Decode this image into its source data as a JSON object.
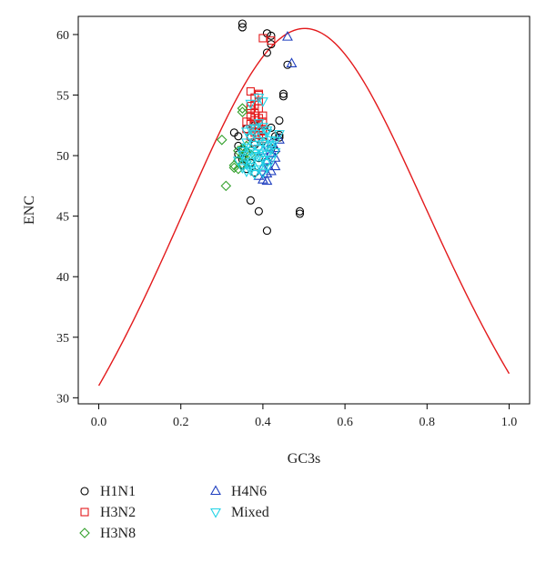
{
  "chart_data": {
    "type": "scatter",
    "xlabel": "GC3s",
    "ylabel": "ENC",
    "xlim": [
      -0.05,
      1.05
    ],
    "ylim": [
      29.5,
      61.5
    ],
    "x_ticks": [
      0.0,
      0.2,
      0.4,
      0.6,
      0.8,
      1.0
    ],
    "x_tick_labels": [
      "0.0",
      "0.2",
      "0.4",
      "0.6",
      "0.8",
      "1.0"
    ],
    "y_ticks": [
      30,
      35,
      40,
      45,
      50,
      55,
      60
    ],
    "y_tick_labels": [
      "30",
      "35",
      "40",
      "45",
      "50",
      "55",
      "60"
    ],
    "grid": false,
    "legend_position": "bottom-left",
    "expected_curve": {
      "formula": "ENC = 2 + s + 29/(s^2 + (1-s)^2)",
      "color": "#e31a1c"
    },
    "series": [
      {
        "name": "H1N1",
        "marker": "circle",
        "color": "#000000",
        "points": [
          [
            0.35,
            60.9
          ],
          [
            0.35,
            60.6
          ],
          [
            0.41,
            60.1
          ],
          [
            0.42,
            59.9
          ],
          [
            0.42,
            59.2
          ],
          [
            0.41,
            58.5
          ],
          [
            0.46,
            57.5
          ],
          [
            0.45,
            55.1
          ],
          [
            0.45,
            54.9
          ],
          [
            0.44,
            52.9
          ],
          [
            0.44,
            51.7
          ],
          [
            0.43,
            51.6
          ],
          [
            0.33,
            51.9
          ],
          [
            0.34,
            51.6
          ],
          [
            0.36,
            52.2
          ],
          [
            0.37,
            51.5
          ],
          [
            0.34,
            50.8
          ],
          [
            0.35,
            50.5
          ],
          [
            0.34,
            50.1
          ],
          [
            0.36,
            50.3
          ],
          [
            0.38,
            50.9
          ],
          [
            0.4,
            51.2
          ],
          [
            0.42,
            50.6
          ],
          [
            0.43,
            50.4
          ],
          [
            0.35,
            49.7
          ],
          [
            0.37,
            49.4
          ],
          [
            0.39,
            49.8
          ],
          [
            0.41,
            49.5
          ],
          [
            0.36,
            48.9
          ],
          [
            0.38,
            48.6
          ],
          [
            0.37,
            46.3
          ],
          [
            0.39,
            45.4
          ],
          [
            0.41,
            43.8
          ],
          [
            0.49,
            45.4
          ],
          [
            0.49,
            45.2
          ],
          [
            0.4,
            52.0
          ],
          [
            0.38,
            52.5
          ],
          [
            0.35,
            49.2
          ],
          [
            0.42,
            52.3
          ],
          [
            0.44,
            51.5
          ]
        ]
      },
      {
        "name": "H3N2",
        "marker": "square",
        "color": "#e31a1c",
        "points": [
          [
            0.4,
            59.7
          ],
          [
            0.42,
            59.5
          ],
          [
            0.37,
            55.3
          ],
          [
            0.39,
            55.1
          ],
          [
            0.38,
            54.2
          ],
          [
            0.39,
            54.5
          ],
          [
            0.37,
            53.8
          ],
          [
            0.38,
            53.5
          ],
          [
            0.39,
            53.1
          ],
          [
            0.38,
            52.9
          ],
          [
            0.37,
            52.6
          ],
          [
            0.38,
            52.3
          ],
          [
            0.39,
            52.6
          ],
          [
            0.4,
            52.1
          ],
          [
            0.38,
            51.9
          ],
          [
            0.37,
            51.6
          ],
          [
            0.39,
            51.7
          ],
          [
            0.4,
            51.4
          ],
          [
            0.38,
            51.1
          ],
          [
            0.39,
            53.9
          ],
          [
            0.4,
            53.3
          ],
          [
            0.37,
            54.1
          ],
          [
            0.36,
            52.8
          ],
          [
            0.38,
            54.8
          ],
          [
            0.4,
            52.8
          ],
          [
            0.39,
            52.2
          ],
          [
            0.38,
            53.1
          ],
          [
            0.37,
            53.3
          ],
          [
            0.39,
            55.0
          ],
          [
            0.36,
            52.2
          ]
        ]
      },
      {
        "name": "H3N8",
        "marker": "diamond",
        "color": "#33a02c",
        "points": [
          [
            0.35,
            53.9
          ],
          [
            0.35,
            53.6
          ],
          [
            0.3,
            51.3
          ],
          [
            0.31,
            47.5
          ],
          [
            0.33,
            49.2
          ],
          [
            0.34,
            49.6
          ],
          [
            0.35,
            49.9
          ],
          [
            0.36,
            50.3
          ],
          [
            0.34,
            48.9
          ],
          [
            0.33,
            49.0
          ],
          [
            0.35,
            50.6
          ],
          [
            0.36,
            49.5
          ],
          [
            0.37,
            50.1
          ],
          [
            0.34,
            50.4
          ],
          [
            0.35,
            49.3
          ],
          [
            0.36,
            50.8
          ]
        ]
      },
      {
        "name": "H4N6",
        "marker": "triangle-up",
        "color": "#1f3fbf",
        "points": [
          [
            0.46,
            59.8
          ],
          [
            0.47,
            57.6
          ],
          [
            0.4,
            48.0
          ],
          [
            0.41,
            47.9
          ],
          [
            0.42,
            48.7
          ],
          [
            0.43,
            49.1
          ],
          [
            0.41,
            49.6
          ],
          [
            0.42,
            50.2
          ],
          [
            0.4,
            49.0
          ],
          [
            0.43,
            50.6
          ],
          [
            0.44,
            51.3
          ],
          [
            0.42,
            51.0
          ],
          [
            0.39,
            48.3
          ],
          [
            0.41,
            48.5
          ],
          [
            0.43,
            49.8
          ],
          [
            0.4,
            50.4
          ]
        ]
      },
      {
        "name": "Mixed",
        "marker": "triangle-down",
        "color": "#22d3e6",
        "points": [
          [
            0.39,
            54.8
          ],
          [
            0.4,
            54.5
          ],
          [
            0.37,
            54.3
          ],
          [
            0.36,
            52.0
          ],
          [
            0.37,
            51.5
          ],
          [
            0.38,
            51.8
          ],
          [
            0.39,
            51.2
          ],
          [
            0.4,
            51.6
          ],
          [
            0.41,
            51.9
          ],
          [
            0.42,
            51.3
          ],
          [
            0.36,
            50.7
          ],
          [
            0.37,
            50.4
          ],
          [
            0.38,
            50.9
          ],
          [
            0.39,
            50.6
          ],
          [
            0.4,
            50.2
          ],
          [
            0.41,
            50.8
          ],
          [
            0.42,
            50.5
          ],
          [
            0.35,
            50.1
          ],
          [
            0.36,
            49.8
          ],
          [
            0.37,
            49.5
          ],
          [
            0.38,
            49.9
          ],
          [
            0.39,
            49.3
          ],
          [
            0.4,
            49.7
          ],
          [
            0.41,
            49.4
          ],
          [
            0.35,
            49.0
          ],
          [
            0.36,
            48.7
          ],
          [
            0.37,
            49.1
          ],
          [
            0.38,
            48.5
          ],
          [
            0.39,
            48.9
          ],
          [
            0.4,
            48.6
          ],
          [
            0.41,
            49.0
          ],
          [
            0.43,
            51.2
          ],
          [
            0.43,
            50.3
          ],
          [
            0.42,
            49.6
          ],
          [
            0.44,
            51.8
          ],
          [
            0.38,
            52.3
          ],
          [
            0.39,
            52.7
          ],
          [
            0.4,
            52.4
          ],
          [
            0.41,
            52.1
          ],
          [
            0.37,
            52.2
          ],
          [
            0.34,
            49.6
          ],
          [
            0.35,
            50.4
          ],
          [
            0.36,
            51.1
          ],
          [
            0.38,
            50.2
          ],
          [
            0.4,
            51.0
          ],
          [
            0.37,
            48.8
          ],
          [
            0.39,
            50.0
          ],
          [
            0.41,
            50.1
          ],
          [
            0.42,
            50.9
          ],
          [
            0.36,
            49.3
          ]
        ]
      }
    ]
  }
}
